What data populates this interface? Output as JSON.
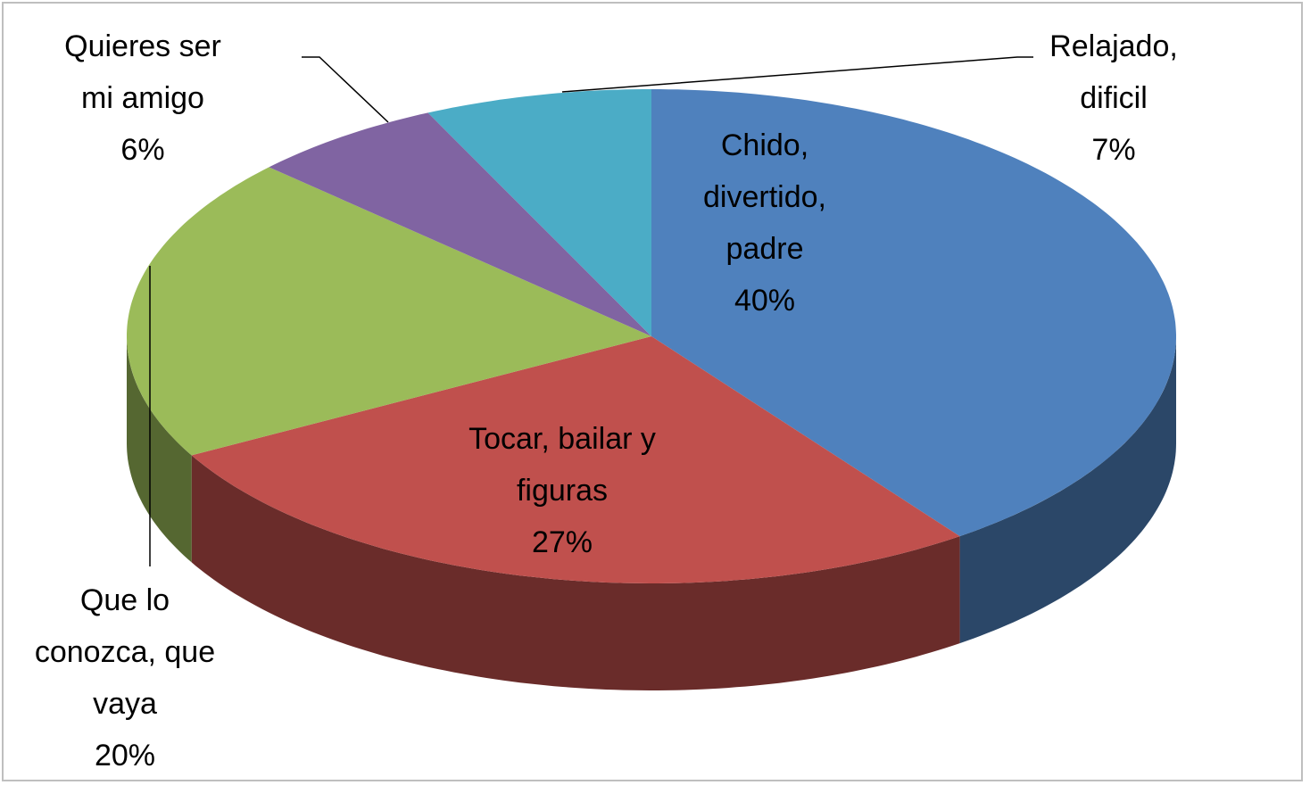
{
  "chart_data": {
    "type": "pie",
    "three_d": true,
    "categories": [
      "Chido, divertido, padre",
      "Tocar, bailar y figuras",
      "Que lo conozca, que vaya",
      "Quieres ser mi amigo",
      "Relajado, dificil"
    ],
    "values": [
      40,
      27,
      20,
      6,
      7
    ],
    "value_labels": [
      "40%",
      "27%",
      "20%",
      "6%",
      "7%"
    ],
    "colors": [
      "#4f81bd",
      "#c0504d",
      "#9bbb59",
      "#8064a2",
      "#4bacc6"
    ]
  }
}
